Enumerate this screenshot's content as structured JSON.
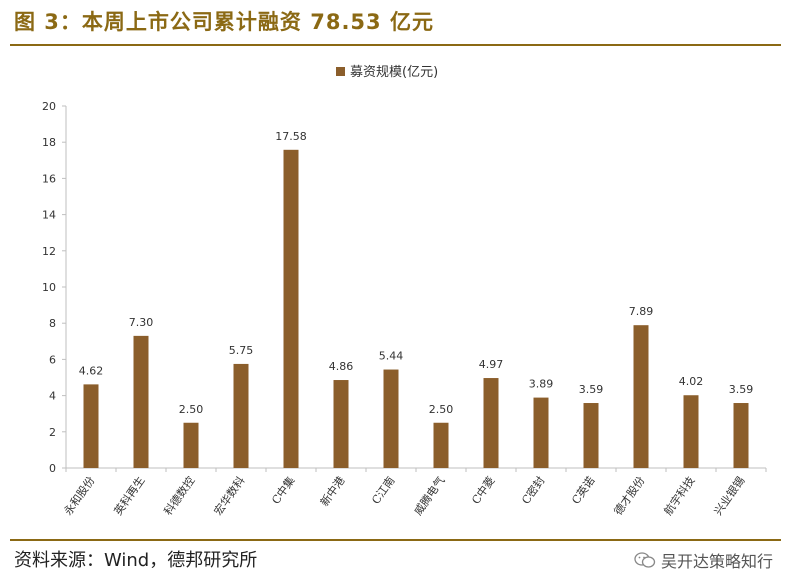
{
  "header": {
    "title": "图 3：本周上市公司累计融资 78.53 亿元"
  },
  "footer": {
    "source": "资料来源：Wind，德邦研究所",
    "watermark": "吴开达策略知行"
  },
  "colors": {
    "bar": "#8B5E2B",
    "accent": "#8B6914",
    "axis": "#bfbfbf"
  },
  "chart_data": {
    "type": "bar",
    "title": "",
    "xlabel": "",
    "ylabel": "",
    "ylim": [
      0,
      20
    ],
    "yticks": [
      0,
      2,
      4,
      6,
      8,
      10,
      12,
      14,
      16,
      18,
      20
    ],
    "legend": {
      "position": "top-center"
    },
    "grid": false,
    "categories": [
      "永和股份",
      "英科再生",
      "科德数控",
      "宏华数科",
      "C中集",
      "新中港",
      "C江南",
      "威腾电气",
      "C中菱",
      "C密封",
      "C英诺",
      "德才股份",
      "航宇科技",
      "兴业银锡"
    ],
    "series": [
      {
        "name": "募资规模(亿元)",
        "values": [
          4.62,
          7.3,
          2.5,
          5.75,
          17.58,
          4.86,
          5.44,
          2.5,
          4.97,
          3.89,
          3.59,
          7.89,
          4.02,
          3.59
        ]
      }
    ],
    "data_labels": [
      "4.62",
      "7.30",
      "2.50",
      "5.75",
      "17.58",
      "4.86",
      "5.44",
      "2.50",
      "4.97",
      "3.89",
      "3.59",
      "7.89",
      "4.02",
      "3.59"
    ]
  }
}
